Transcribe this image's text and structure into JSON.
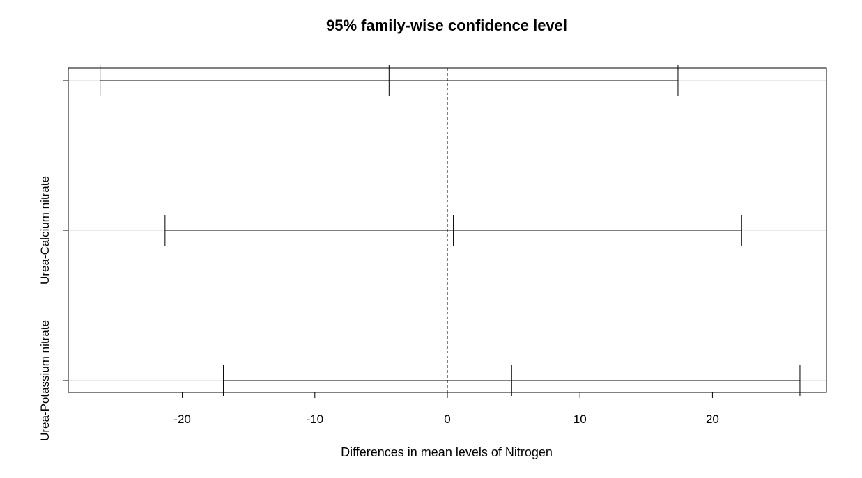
{
  "chart_data": {
    "type": "scatter",
    "title": "95% family-wise confidence level",
    "xlabel": "Differences in mean levels of Nitrogen",
    "ylabel": "",
    "xlim": [
      -28.6,
      28.6
    ],
    "x_ticks": [
      -20,
      -10,
      0,
      10,
      20
    ],
    "x_tick_labels": [
      "-20",
      "-10",
      "0",
      "10",
      "20"
    ],
    "reference_line": 0,
    "grid": "horizontal",
    "comparisons": [
      {
        "label": "",
        "lower": -26.2,
        "estimate": -4.4,
        "upper": 17.4
      },
      {
        "label": "Urea-Calcium nitrate",
        "lower": -21.3,
        "estimate": 0.45,
        "upper": 22.2
      },
      {
        "label": "Urea-Potassium nitrate",
        "lower": -16.9,
        "estimate": 4.85,
        "upper": 26.6
      }
    ]
  },
  "colors": {
    "line": "#000000",
    "grid": "#d3d3d3",
    "background": "#ffffff"
  }
}
